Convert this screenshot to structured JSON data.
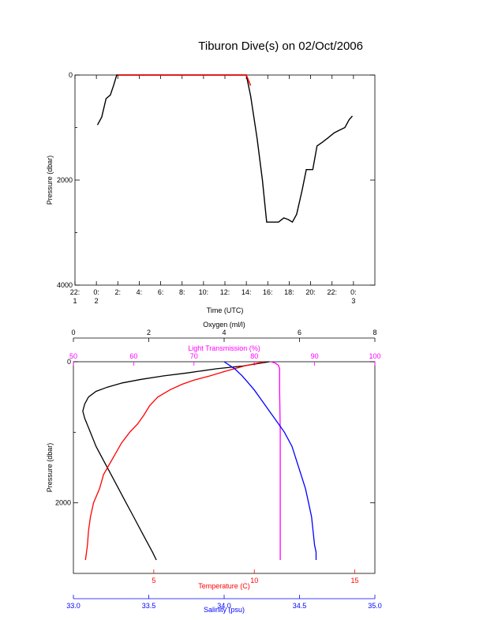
{
  "title": "Tiburon Dive(s) on 02/Oct/2006",
  "colors": {
    "axis": "#000000",
    "oxygen": "#000000",
    "temperature": "#ff0000",
    "light": "#ff00ff",
    "salinity": "#0000ff"
  },
  "chart_data": [
    {
      "type": "line",
      "title": "Tiburon Dive(s) on 02/Oct/2006",
      "xlabel": "Time (UTC)",
      "ylabel": "Pressure (dbar)",
      "xlim": [
        -2,
        26
      ],
      "ylim": [
        4000,
        0
      ],
      "y_inverted": true,
      "grid": false,
      "x_ticks": [
        {
          "v": -2,
          "t1": "22:",
          "t2": "1"
        },
        {
          "v": 0,
          "t1": "0:",
          "t2": "2"
        },
        {
          "v": 2,
          "t1": "2:",
          "t2": ""
        },
        {
          "v": 4,
          "t1": "4:",
          "t2": ""
        },
        {
          "v": 6,
          "t1": "6:",
          "t2": ""
        },
        {
          "v": 8,
          "t1": "8:",
          "t2": ""
        },
        {
          "v": 10,
          "t1": "10:",
          "t2": ""
        },
        {
          "v": 12,
          "t1": "12:",
          "t2": ""
        },
        {
          "v": 14,
          "t1": "14:",
          "t2": ""
        },
        {
          "v": 16,
          "t1": "16:",
          "t2": ""
        },
        {
          "v": 18,
          "t1": "18:",
          "t2": ""
        },
        {
          "v": 20,
          "t1": "20:",
          "t2": ""
        },
        {
          "v": 22,
          "t1": "22:",
          "t2": ""
        },
        {
          "v": 24,
          "t1": "0:",
          "t2": "3"
        }
      ],
      "y_ticks": [
        0,
        2000,
        4000
      ],
      "series": [
        {
          "color": "#000000",
          "x": [
            0.1,
            0.5,
            0.9,
            1.3,
            1.6,
            1.9,
            14.0,
            14.4,
            15.0,
            15.5,
            15.9,
            16.4,
            17.0,
            17.5,
            17.9,
            18.3,
            18.7,
            19.2,
            19.6,
            20.2,
            20.6,
            21.1,
            21.6,
            22.2,
            22.7,
            23.2,
            23.6,
            23.9
          ],
          "y": [
            950,
            800,
            450,
            380,
            200,
            0,
            0,
            400,
            1200,
            2000,
            2800,
            2800,
            2800,
            2720,
            2750,
            2800,
            2650,
            2200,
            1800,
            1800,
            1350,
            1280,
            1200,
            1100,
            1050,
            1000,
            850,
            780
          ]
        },
        {
          "color": "#ff0000",
          "x": [
            2.0,
            14.0,
            14.4
          ],
          "y": [
            0,
            0,
            200
          ]
        }
      ]
    },
    {
      "type": "line",
      "ylabel": "Pressure (dbar)",
      "ylim": [
        3000,
        0
      ],
      "y_inverted": true,
      "grid": false,
      "y_ticks": [
        0,
        2000
      ],
      "axes": {
        "oxygen": {
          "label": "Oxygen (ml/l)",
          "range": [
            0,
            8
          ],
          "ticks": [
            "0",
            "2",
            "4",
            "6",
            "8"
          ],
          "position": "top"
        },
        "light": {
          "label": "Light Transmission (%)",
          "range": [
            50,
            100
          ],
          "ticks": [
            "50",
            "60",
            "70",
            "80",
            "90",
            "100"
          ],
          "position": "top"
        },
        "temperature": {
          "label": "Temperature (C)",
          "range": [
            1,
            16
          ],
          "ticks": [
            "5",
            "10",
            "15"
          ],
          "position": "bottom"
        },
        "salinity": {
          "label": "Salinity (psu)",
          "range": [
            33.0,
            35.0
          ],
          "ticks": [
            "33.0",
            "33.5",
            "34.0",
            "34.5",
            "35.0"
          ],
          "position": "bottom"
        }
      },
      "series": [
        {
          "name": "Oxygen (ml/l)",
          "axis": "oxygen",
          "color": "#000000",
          "x": [
            5.2,
            4.5,
            3.8,
            3.0,
            2.4,
            1.8,
            1.3,
            0.9,
            0.6,
            0.4,
            0.3,
            0.25,
            0.3,
            0.45,
            0.6,
            0.8,
            1.0,
            1.2,
            1.4,
            1.6,
            1.8,
            2.0,
            2.1,
            2.2
          ],
          "y": [
            0,
            60,
            100,
            160,
            200,
            250,
            300,
            360,
            420,
            500,
            600,
            700,
            800,
            1000,
            1200,
            1400,
            1600,
            1800,
            2000,
            2200,
            2400,
            2600,
            2700,
            2810
          ]
        },
        {
          "name": "Light Transmission (%)",
          "axis": "light",
          "color": "#ff00ff",
          "x": [
            82.8,
            83.5,
            84.0,
            84.2,
            84.2,
            84.3,
            84.3,
            84.3,
            84.3
          ],
          "y": [
            0,
            20,
            50,
            100,
            400,
            1000,
            1800,
            2400,
            2810
          ]
        },
        {
          "name": "Temperature (C)",
          "axis": "temperature",
          "color": "#ff0000",
          "x": [
            10.5,
            9.5,
            8.5,
            7.8,
            7.0,
            6.4,
            5.8,
            5.2,
            4.8,
            4.5,
            4.2,
            3.8,
            3.4,
            3.1,
            2.8,
            2.5,
            2.3,
            2.0,
            1.85,
            1.75,
            1.7,
            1.65,
            1.6
          ],
          "y": [
            0,
            60,
            140,
            200,
            260,
            320,
            400,
            500,
            620,
            760,
            880,
            1000,
            1150,
            1300,
            1450,
            1600,
            1800,
            2000,
            2200,
            2400,
            2600,
            2700,
            2810
          ]
        },
        {
          "name": "Salinity (psu)",
          "axis": "salinity",
          "color": "#0000ff",
          "x": [
            34.0,
            34.07,
            34.12,
            34.16,
            34.2,
            34.25,
            34.3,
            34.35,
            34.4,
            34.45,
            34.48,
            34.51,
            34.54,
            34.56,
            34.58,
            34.59,
            34.6,
            34.61,
            34.61
          ],
          "y": [
            0,
            100,
            200,
            300,
            400,
            550,
            700,
            850,
            1000,
            1200,
            1400,
            1600,
            1800,
            2000,
            2200,
            2400,
            2600,
            2700,
            2810
          ]
        }
      ]
    }
  ]
}
